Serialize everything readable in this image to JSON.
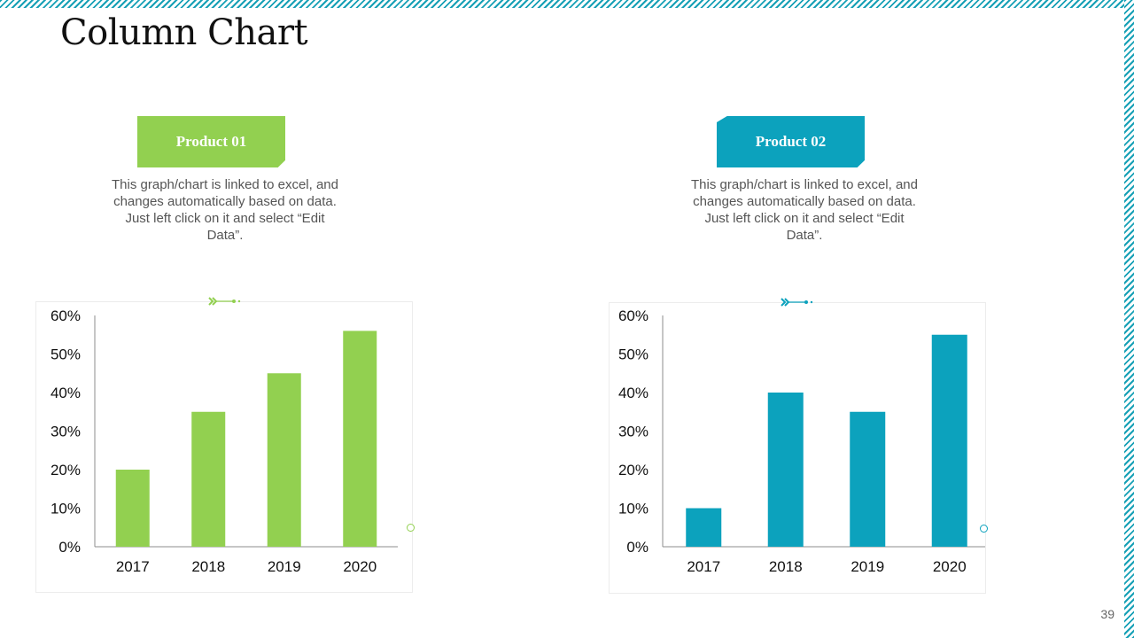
{
  "slide": {
    "title": "Column Chart",
    "page_number": "39"
  },
  "colors": {
    "green": "#92d050",
    "teal": "#0ca2bd",
    "stripe": "#16a0b6"
  },
  "products": [
    {
      "label": "Product 01",
      "description": "This graph/chart is linked to excel, and changes automatically based on data. Just left click on it and select “Edit Data”.",
      "color": "#92d050"
    },
    {
      "label": "Product 02",
      "description": "This graph/chart is linked to excel, and changes automatically based on data. Just left click on it and select “Edit Data”.",
      "color": "#0ca2bd"
    }
  ],
  "chart_data": [
    {
      "type": "bar",
      "title": "",
      "xlabel": "",
      "ylabel": "",
      "categories": [
        "2017",
        "2018",
        "2019",
        "2020"
      ],
      "values": [
        20,
        35,
        45,
        56
      ],
      "ylim": [
        0,
        60
      ],
      "yticks": [
        0,
        10,
        20,
        30,
        40,
        50,
        60
      ],
      "ytick_labels": [
        "0%",
        "10%",
        "20%",
        "30%",
        "40%",
        "50%",
        "60%"
      ],
      "color": "#92d050",
      "grid": false
    },
    {
      "type": "bar",
      "title": "",
      "xlabel": "",
      "ylabel": "",
      "categories": [
        "2017",
        "2018",
        "2019",
        "2020"
      ],
      "values": [
        10,
        40,
        35,
        55
      ],
      "ylim": [
        0,
        60
      ],
      "yticks": [
        0,
        10,
        20,
        30,
        40,
        50,
        60
      ],
      "ytick_labels": [
        "0%",
        "10%",
        "20%",
        "30%",
        "40%",
        "50%",
        "60%"
      ],
      "color": "#0ca2bd",
      "grid": false
    }
  ]
}
